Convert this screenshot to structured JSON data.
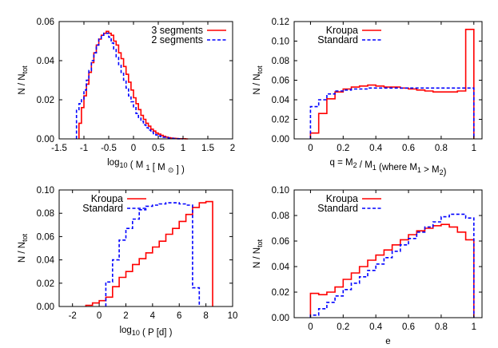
{
  "chart_data": [
    {
      "type": "line",
      "panel": "top-left",
      "xlabel_prefix": "log",
      "xlabel_sub": "10",
      "xlabel_rest": "( M",
      "xlabel_sub2": "1",
      "xlabel_tail": "[ M",
      "xlabel_sym": "⊙",
      "xlabel_end": "] )",
      "ylabel_main": "N / N",
      "ylabel_sub": "tot",
      "xlim": [
        -1.5,
        2
      ],
      "ylim": [
        0,
        0.06
      ],
      "xticks": [
        "-1.5",
        "-1",
        "-0.5",
        "0",
        "0.5",
        "1",
        "1.5",
        "2"
      ],
      "xtick_values": [
        -1.5,
        -1,
        -0.5,
        0,
        0.5,
        1,
        1.5,
        2
      ],
      "yticks": [
        "0.00",
        "0.02",
        "0.04",
        "0.06"
      ],
      "ytick_values": [
        0,
        0.02,
        0.04,
        0.06
      ],
      "legend_position": "top-right",
      "series": [
        {
          "name": "3 segments",
          "color": "#ff0000",
          "dash": "solid",
          "edges": [
            -1.1,
            -1.05,
            -1.0,
            -0.95,
            -0.9,
            -0.85,
            -0.8,
            -0.75,
            -0.7,
            -0.65,
            -0.6,
            -0.55,
            -0.5,
            -0.45,
            -0.4,
            -0.35,
            -0.3,
            -0.25,
            -0.2,
            -0.15,
            -0.1,
            -0.05,
            0.0,
            0.05,
            0.1,
            0.15,
            0.2,
            0.25,
            0.3,
            0.35,
            0.4,
            0.45,
            0.5,
            0.55,
            0.6,
            0.65,
            0.7,
            0.75,
            0.8,
            0.85,
            0.9,
            0.95,
            1.0,
            1.05,
            1.1
          ],
          "values": [
            0.008,
            0.016,
            0.022,
            0.028,
            0.034,
            0.039,
            0.044,
            0.048,
            0.051,
            0.053,
            0.054,
            0.055,
            0.054,
            0.053,
            0.05,
            0.048,
            0.044,
            0.041,
            0.037,
            0.033,
            0.029,
            0.025,
            0.021,
            0.018,
            0.015,
            0.012,
            0.01,
            0.008,
            0.0065,
            0.005,
            0.004,
            0.003,
            0.0024,
            0.0018,
            0.0013,
            0.0009,
            0.0006,
            0.0004,
            0.0003,
            0.0002,
            0.0001,
            0.0001,
            0.0001,
            0.0
          ]
        },
        {
          "name": "2 segments",
          "color": "#0000ff",
          "dash": "dashed",
          "edges": [
            -1.15,
            -1.1,
            -1.05,
            -1.0,
            -0.95,
            -0.9,
            -0.85,
            -0.8,
            -0.75,
            -0.7,
            -0.65,
            -0.6,
            -0.55,
            -0.5,
            -0.45,
            -0.4,
            -0.35,
            -0.3,
            -0.25,
            -0.2,
            -0.15,
            -0.1,
            -0.05,
            0.0,
            0.05,
            0.1,
            0.15,
            0.2,
            0.25,
            0.3,
            0.35,
            0.4,
            0.45,
            0.5,
            0.55,
            0.6,
            0.65,
            0.7,
            0.75,
            0.8,
            0.85,
            0.9,
            0.95,
            1.0
          ],
          "values": [
            0.015,
            0.018,
            0.02,
            0.025,
            0.03,
            0.035,
            0.04,
            0.044,
            0.048,
            0.051,
            0.053,
            0.054,
            0.054,
            0.052,
            0.049,
            0.046,
            0.042,
            0.038,
            0.034,
            0.03,
            0.026,
            0.022,
            0.019,
            0.016,
            0.013,
            0.011,
            0.009,
            0.0072,
            0.0057,
            0.0045,
            0.0035,
            0.0027,
            0.002,
            0.0015,
            0.0011,
            0.0008,
            0.0006,
            0.0004,
            0.0003,
            0.0002,
            0.0001,
            0.0001,
            0.0
          ]
        }
      ]
    },
    {
      "type": "line",
      "panel": "top-right",
      "xlabel_text": "q = M",
      "ylabel_main": "N / N",
      "ylabel_sub": "tot",
      "xlim": [
        -0.1,
        1.05
      ],
      "ylim": [
        0,
        0.12
      ],
      "xticks": [
        "0",
        "0.2",
        "0.4",
        "0.6",
        "0.8",
        "1"
      ],
      "xtick_values": [
        0,
        0.2,
        0.4,
        0.6,
        0.8,
        1
      ],
      "yticks": [
        "0.00",
        "0.02",
        "0.04",
        "0.06",
        "0.08",
        "0.10",
        "0.12"
      ],
      "ytick_values": [
        0,
        0.02,
        0.04,
        0.06,
        0.08,
        0.1,
        0.12
      ],
      "legend_position": "top-left",
      "series": [
        {
          "name": "Kroupa",
          "color": "#ff0000",
          "dash": "solid",
          "edges": [
            0.0,
            0.05,
            0.1,
            0.15,
            0.2,
            0.25,
            0.3,
            0.35,
            0.4,
            0.45,
            0.5,
            0.55,
            0.6,
            0.65,
            0.7,
            0.75,
            0.8,
            0.85,
            0.9,
            0.95,
            1.0
          ],
          "values": [
            0.006,
            0.026,
            0.041,
            0.048,
            0.051,
            0.053,
            0.054,
            0.055,
            0.054,
            0.053,
            0.053,
            0.052,
            0.051,
            0.05,
            0.049,
            0.048,
            0.048,
            0.048,
            0.049,
            0.112
          ]
        },
        {
          "name": "Standard",
          "color": "#0000ff",
          "dash": "dashed",
          "edges": [
            0.0,
            0.05,
            0.1,
            0.15,
            0.2,
            0.25,
            0.3,
            0.35,
            0.4,
            0.45,
            0.5,
            0.55,
            0.6,
            0.65,
            0.7,
            0.75,
            0.8,
            0.85,
            0.9,
            0.95,
            1.0
          ],
          "values": [
            0.033,
            0.04,
            0.046,
            0.049,
            0.05,
            0.051,
            0.051,
            0.052,
            0.052,
            0.052,
            0.052,
            0.052,
            0.052,
            0.052,
            0.052,
            0.052,
            0.052,
            0.052,
            0.052,
            0.052
          ]
        }
      ]
    },
    {
      "type": "line",
      "panel": "bottom-left",
      "xlabel_prefix": "log",
      "xlabel_sub": "10",
      "xlabel_rest": "( P [d] )",
      "ylabel_main": "N / N",
      "ylabel_sub": "tot",
      "xlim": [
        -3,
        10
      ],
      "ylim": [
        0,
        0.1
      ],
      "xticks": [
        "-2",
        "0",
        "2",
        "4",
        "6",
        "8",
        "10"
      ],
      "xtick_values": [
        -2,
        0,
        2,
        4,
        6,
        8,
        10
      ],
      "yticks": [
        "0.00",
        "0.02",
        "0.04",
        "0.06",
        "0.08",
        "0.10"
      ],
      "ytick_values": [
        0,
        0.02,
        0.04,
        0.06,
        0.08,
        0.1
      ],
      "legend_position": "top-left",
      "series": [
        {
          "name": "Kroupa",
          "color": "#ff0000",
          "dash": "solid",
          "edges": [
            -1.0,
            -0.5,
            0.0,
            0.5,
            1.0,
            1.5,
            2.0,
            2.5,
            3.0,
            3.5,
            4.0,
            4.5,
            5.0,
            5.5,
            6.0,
            6.5,
            7.0,
            7.5,
            8.0,
            8.5
          ],
          "values": [
            0.001,
            0.003,
            0.005,
            0.008,
            0.017,
            0.025,
            0.03,
            0.036,
            0.041,
            0.046,
            0.051,
            0.056,
            0.062,
            0.067,
            0.073,
            0.079,
            0.085,
            0.089,
            0.09
          ]
        },
        {
          "name": "Standard",
          "color": "#0000ff",
          "dash": "dashed",
          "edges": [
            0.5,
            1.0,
            1.5,
            2.0,
            2.5,
            3.0,
            3.5,
            4.0,
            4.5,
            5.0,
            5.5,
            6.0,
            6.5,
            7.0,
            7.5
          ],
          "values": [
            0.021,
            0.04,
            0.057,
            0.067,
            0.075,
            0.083,
            0.086,
            0.087,
            0.088,
            0.089,
            0.089,
            0.088,
            0.087,
            0.016
          ]
        }
      ]
    },
    {
      "type": "line",
      "panel": "bottom-right",
      "xlabel_text": "e",
      "ylabel_main": "N / N",
      "ylabel_sub": "tot",
      "xlim": [
        -0.1,
        1.05
      ],
      "ylim": [
        0,
        0.1
      ],
      "xticks": [
        "0",
        "0.2",
        "0.4",
        "0.6",
        "0.8",
        "1"
      ],
      "xtick_values": [
        0,
        0.2,
        0.4,
        0.6,
        0.8,
        1
      ],
      "yticks": [
        "0.00",
        "0.02",
        "0.04",
        "0.06",
        "0.08",
        "0.10"
      ],
      "ytick_values": [
        0,
        0.02,
        0.04,
        0.06,
        0.08,
        0.1
      ],
      "legend_position": "top-left",
      "series": [
        {
          "name": "Kroupa",
          "color": "#ff0000",
          "dash": "solid",
          "edges": [
            0.0,
            0.05,
            0.1,
            0.15,
            0.2,
            0.25,
            0.3,
            0.35,
            0.4,
            0.45,
            0.5,
            0.55,
            0.6,
            0.65,
            0.7,
            0.75,
            0.8,
            0.85,
            0.9,
            0.95,
            1.0
          ],
          "values": [
            0.019,
            0.018,
            0.02,
            0.024,
            0.03,
            0.035,
            0.04,
            0.045,
            0.049,
            0.053,
            0.057,
            0.061,
            0.065,
            0.068,
            0.07,
            0.072,
            0.073,
            0.071,
            0.067,
            0.061
          ]
        },
        {
          "name": "Standard",
          "color": "#0000ff",
          "dash": "dashed",
          "edges": [
            0.0,
            0.05,
            0.1,
            0.15,
            0.2,
            0.25,
            0.3,
            0.35,
            0.4,
            0.45,
            0.5,
            0.55,
            0.6,
            0.65,
            0.7,
            0.75,
            0.8,
            0.85,
            0.9,
            0.95,
            1.0
          ],
          "values": [
            0.002,
            0.007,
            0.012,
            0.017,
            0.022,
            0.027,
            0.032,
            0.037,
            0.042,
            0.047,
            0.052,
            0.057,
            0.062,
            0.067,
            0.071,
            0.075,
            0.079,
            0.081,
            0.081,
            0.078
          ]
        }
      ]
    }
  ],
  "labels": {
    "top_right_x_parts": [
      "q = M",
      "2",
      " / M",
      "1",
      " (where M",
      "1",
      " > M",
      "2",
      ")"
    ]
  }
}
